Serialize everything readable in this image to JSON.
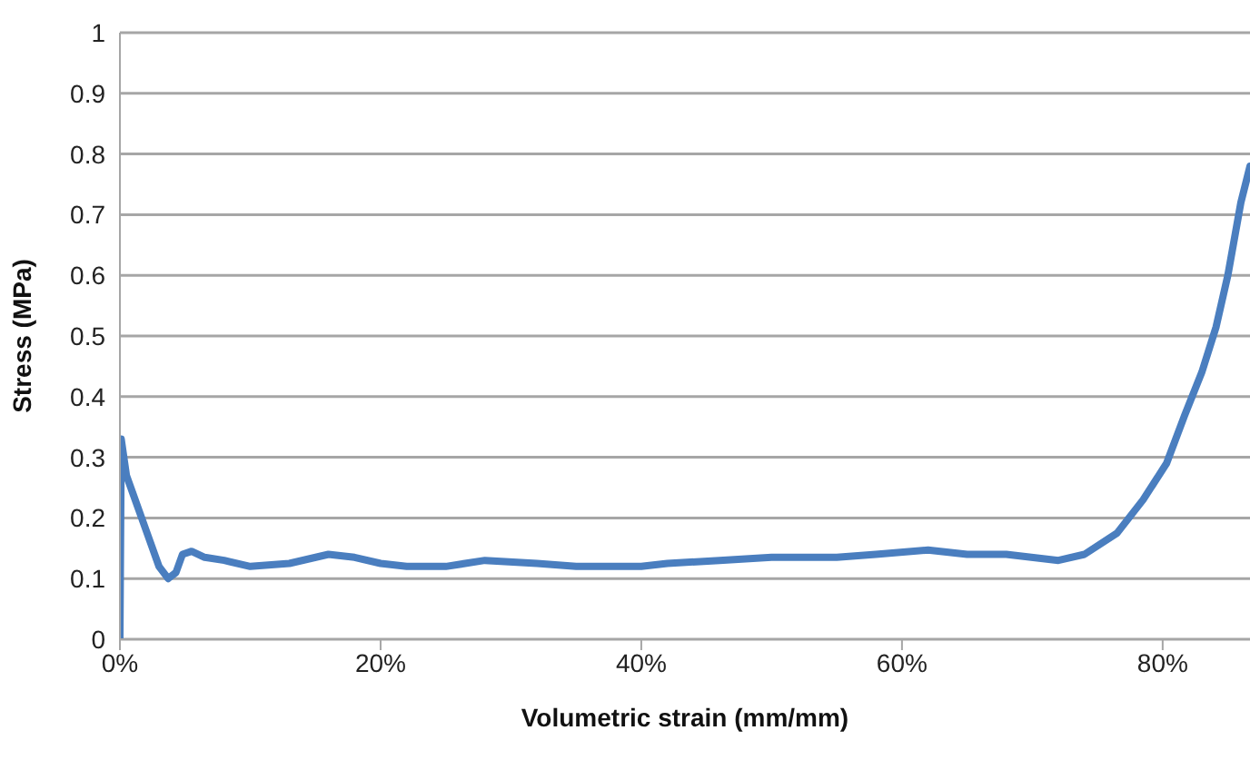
{
  "chart_data": {
    "type": "line",
    "xlabel": "Volumetric strain (mm/mm)",
    "ylabel": "Stress (MPa)",
    "xlim": [
      0,
      86.7
    ],
    "xticks": [
      {
        "value": 0,
        "label": "0%"
      },
      {
        "value": 20,
        "label": "20%"
      },
      {
        "value": 40,
        "label": "40%"
      },
      {
        "value": 60,
        "label": "60%"
      },
      {
        "value": 80,
        "label": "80%"
      }
    ],
    "ylim": [
      0,
      1
    ],
    "yticks": [
      0,
      0.1,
      0.2,
      0.3,
      0.4,
      0.5,
      0.6,
      0.7,
      0.8,
      0.9,
      1
    ],
    "grid": "y",
    "marker": "none",
    "line_style": "solid",
    "series": [
      {
        "color": "#4a7ebf",
        "x": [
          0,
          0.1,
          0.5,
          1,
          2,
          3,
          3.7,
          4.3,
          4.8,
          5.5,
          6.5,
          8,
          10,
          13,
          16,
          18,
          20,
          22,
          25,
          28,
          32,
          35,
          40,
          42,
          46,
          50,
          55,
          58,
          62,
          65,
          68,
          72,
          74,
          76.5,
          78.5,
          80.3,
          81.7,
          83,
          84.1,
          85,
          86,
          86.7
        ],
        "values": [
          0,
          0.33,
          0.27,
          0.24,
          0.18,
          0.12,
          0.1,
          0.11,
          0.14,
          0.145,
          0.135,
          0.13,
          0.12,
          0.125,
          0.14,
          0.135,
          0.125,
          0.12,
          0.12,
          0.13,
          0.125,
          0.12,
          0.12,
          0.125,
          0.13,
          0.135,
          0.135,
          0.14,
          0.147,
          0.14,
          0.14,
          0.13,
          0.14,
          0.175,
          0.23,
          0.29,
          0.37,
          0.44,
          0.515,
          0.6,
          0.72,
          0.78
        ]
      }
    ]
  }
}
